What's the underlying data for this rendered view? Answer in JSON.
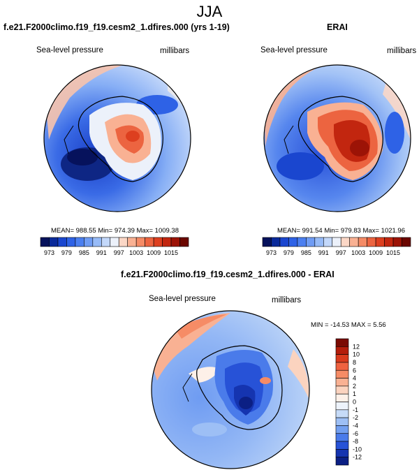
{
  "figure": {
    "season": "JJA"
  },
  "panels": [
    {
      "title": "f.e21.F2000climo.f19_f19.cesm2_1.dfires.000 (yrs 1-19)",
      "variable": "Sea-level pressure",
      "units": "millibars",
      "stats": "MEAN= 988.55  Min= 974.39  Max= 1009.38"
    },
    {
      "title": "ERAI",
      "variable": "Sea-level pressure",
      "units": "millibars",
      "stats": "MEAN= 991.54  Min= 979.83  Max= 1021.96"
    },
    {
      "title": "f.e21.F2000climo.f19_f19.cesm2_1.dfires.000 - ERAI",
      "variable": "Sea-level pressure",
      "units": "millibars",
      "stats": "MIN = -14.53 MAX =   5.56"
    }
  ],
  "colorbar_abs": {
    "labels": [
      "973",
      "979",
      "985",
      "991",
      "997",
      "1003",
      "1009",
      "1015"
    ],
    "colors": [
      "#06125c",
      "#0a2a9a",
      "#1a46cf",
      "#2e62e6",
      "#4b7ff0",
      "#6f9cf4",
      "#97bbf7",
      "#c3d8fa",
      "#ecf1fa",
      "#fbd7c6",
      "#f9b193",
      "#f58b66",
      "#ec6440",
      "#dd3f1f",
      "#c2260f",
      "#9c1306",
      "#6b0700"
    ]
  },
  "colorbar_diff": {
    "labels": [
      "12",
      "10",
      "8",
      "6",
      "4",
      "2",
      "1",
      "0",
      "-1",
      "-2",
      "-4",
      "-6",
      "-8",
      "-10",
      "-12"
    ],
    "colors": [
      "#7a0a03",
      "#b41d0b",
      "#d93a1d",
      "#ef6240",
      "#f68c66",
      "#f9b193",
      "#fbd3bf",
      "#fdf0e8",
      "#edf3fb",
      "#c6dbf8",
      "#9dbff5",
      "#729ff0",
      "#4a7bea",
      "#2752d7",
      "#1534b0",
      "#0b1f84"
    ]
  },
  "chart_data": [
    {
      "type": "heatmap",
      "title": "f.e21.F2000climo.f19_f19.cesm2_1.dfires.000 (yrs 1-19)",
      "projection": "south polar stereographic",
      "field": "Sea-level pressure (JJA)",
      "units": "millibars",
      "contour_levels": [
        973,
        976,
        979,
        982,
        985,
        988,
        991,
        994,
        997,
        1000,
        1003,
        1006,
        1009,
        1012,
        1015
      ],
      "mean": 988.55,
      "min": 974.39,
      "max": 1009.38
    },
    {
      "type": "heatmap",
      "title": "ERAI",
      "projection": "south polar stereographic",
      "field": "Sea-level pressure (JJA)",
      "units": "millibars",
      "contour_levels": [
        973,
        976,
        979,
        982,
        985,
        988,
        991,
        994,
        997,
        1000,
        1003,
        1006,
        1009,
        1012,
        1015
      ],
      "mean": 991.54,
      "min": 979.83,
      "max": 1021.96
    },
    {
      "type": "heatmap",
      "title": "f.e21.F2000climo.f19_f19.cesm2_1.dfires.000 - ERAI",
      "projection": "south polar stereographic",
      "field": "Sea-level pressure difference (JJA)",
      "units": "millibars",
      "contour_levels": [
        -12,
        -10,
        -8,
        -6,
        -4,
        -2,
        -1,
        0,
        1,
        2,
        4,
        6,
        8,
        10,
        12
      ],
      "min": -14.53,
      "max": 5.56
    }
  ]
}
